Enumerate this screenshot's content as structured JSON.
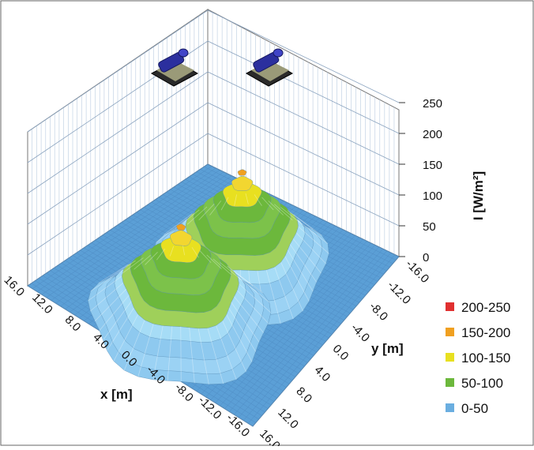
{
  "chart_data": {
    "type": "surface",
    "title": "",
    "xlabel": "x [m]",
    "ylabel": "y [m]",
    "zlabel": "I [W/m²]",
    "x_ticks": [
      "16.0",
      "12.0",
      "8.0",
      "4.0",
      "0.0",
      "-4.0",
      "-8.0",
      "-12.0",
      "-16.0"
    ],
    "y_ticks": [
      "-16.0",
      "-12.0",
      "-8.0",
      "-4.0",
      "0.0",
      "4.0",
      "8.0",
      "12.0",
      "16.0"
    ],
    "z_ticks": [
      "0",
      "50",
      "100",
      "150",
      "200",
      "250"
    ],
    "xlim": [
      -16,
      16
    ],
    "ylim": [
      -16,
      16
    ],
    "zlim": [
      0,
      250
    ],
    "grid": true,
    "legend_position": "right",
    "legend": [
      {
        "label": "200-250",
        "color": "#e03030"
      },
      {
        "label": "150-200",
        "color": "#f0a020"
      },
      {
        "label": "100-150",
        "color": "#e8e020"
      },
      {
        "label": "50-100",
        "color": "#6cb83c"
      },
      {
        "label": "0-50",
        "color": "#6aaee0"
      }
    ],
    "peaks": [
      {
        "x": 0.0,
        "y": -4.0,
        "value": 150
      },
      {
        "x": 0.0,
        "y": 8.0,
        "value": 150
      }
    ],
    "sources": [
      {
        "name": "lamp-left-icon"
      },
      {
        "name": "lamp-right-icon"
      }
    ]
  }
}
